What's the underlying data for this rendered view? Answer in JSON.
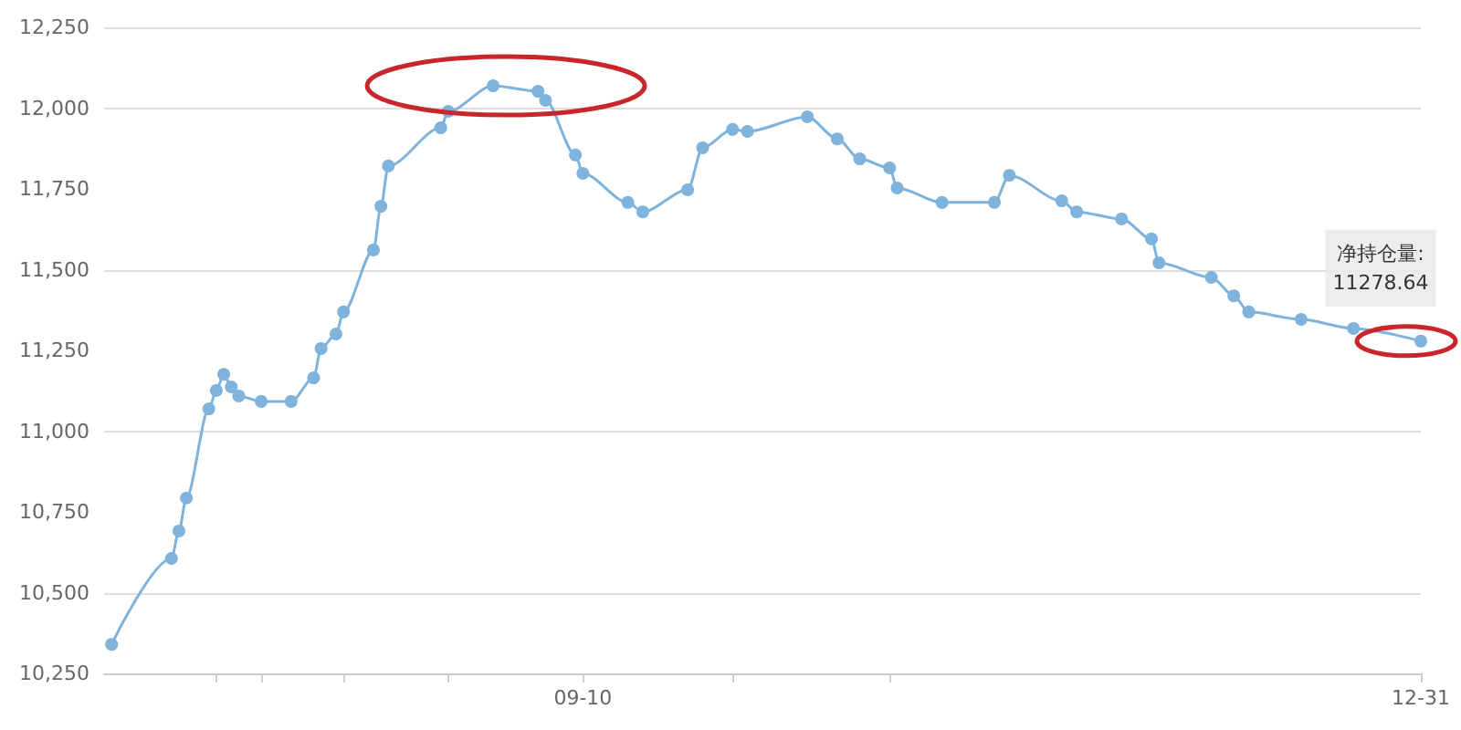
{
  "chart_data": {
    "type": "line",
    "marker": "circle",
    "grid": "y",
    "x": [
      "--07-09",
      "--07-17",
      "--07-18",
      "--07-19",
      "--07-22",
      "--07-23",
      "--07-24",
      "--07-25",
      "--07-26",
      "--07-29",
      "--08-02",
      "--08-05",
      "--08-06",
      "--08-08",
      "--08-09",
      "--08-13",
      "--08-14",
      "--08-15",
      "--08-22",
      "--08-23",
      "--08-29",
      "--09-04",
      "--09-05",
      "--09-09",
      "--09-10",
      "--09-16",
      "--09-18",
      "--09-24",
      "--09-26",
      "--09-30",
      "--10-02",
      "--10-10",
      "--10-14",
      "--10-17",
      "--10-21",
      "--10-22",
      "--10-28",
      "--11-04",
      "--11-06",
      "--11-13",
      "--11-15",
      "--11-21",
      "--11-25",
      "--11-26",
      "--12-03",
      "--12-06",
      "--12-08",
      "--12-15",
      "--12-22",
      "--12-31"
    ],
    "series": [
      {
        "color": "#7fb3dc",
        "values": [
          10340,
          10606,
          10691,
          10793,
          11069,
          11126,
          11176,
          11137,
          11109,
          11092,
          11092,
          11165,
          11256,
          11301,
          11369,
          11561,
          11696,
          11821,
          11939,
          11990,
          12069,
          12052,
          12024,
          11855,
          11798,
          11708,
          11679,
          11747,
          11877,
          11934,
          11928,
          11973,
          11905,
          11843,
          11815,
          11753,
          11708,
          11708,
          11792,
          11713,
          11679,
          11657,
          11595,
          11521,
          11476,
          11419,
          11369,
          11346,
          11318,
          11278.64
        ]
      }
    ],
    "xlim": [
      "--07-08",
      "--12-31"
    ],
    "xticks": [
      {
        "value": "--07-23",
        "label": null
      },
      {
        "value": "--07-29",
        "label": null
      },
      {
        "value": "--08-09",
        "label": null
      },
      {
        "value": "--08-23",
        "label": null
      },
      {
        "value": "--09-10",
        "label": "09-10"
      },
      {
        "value": "--09-30",
        "label": null
      },
      {
        "value": "--10-21",
        "label": null
      },
      {
        "value": "--12-31",
        "label": "12-31"
      }
    ],
    "ylim": [
      10250,
      12250
    ],
    "yticks": [
      {
        "value": 10250,
        "label": "10,250"
      },
      {
        "value": 10500,
        "label": "10,500"
      },
      {
        "value": 10750,
        "label": "10,750"
      },
      {
        "value": 11000,
        "label": "11,000"
      },
      {
        "value": 11250,
        "label": "11,250"
      },
      {
        "value": 11500,
        "label": "11,500"
      },
      {
        "value": 11750,
        "label": "11,750"
      },
      {
        "value": 12000,
        "label": "12,000"
      },
      {
        "value": 12250,
        "label": "12,250"
      }
    ],
    "annotations": [
      {
        "text": "净持仓量:\n11278.64",
        "x": "--12-31",
        "y": 11278.64
      }
    ]
  }
}
